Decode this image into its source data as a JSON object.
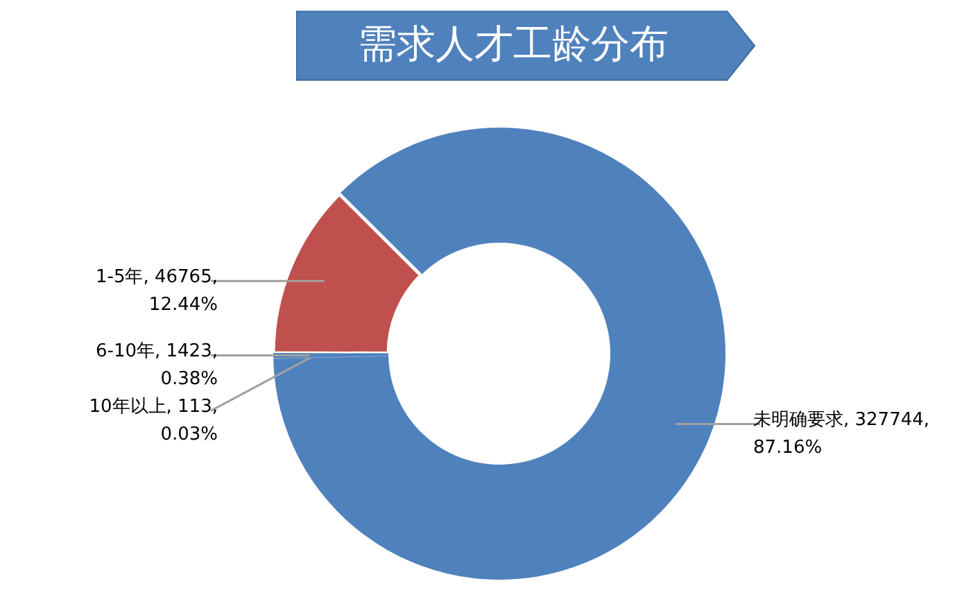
{
  "chart_data": {
    "type": "donut",
    "title": "需求人才工龄分布",
    "categories": [
      "10年以上",
      "6-10年",
      "1-5年",
      "未明确要求"
    ],
    "values": [
      113,
      1423,
      46765,
      327744
    ],
    "value_labels": [
      "113, 0.03%",
      "1423, 0.38%",
      "46765, 12.44%",
      "327744, 87.16%"
    ],
    "colors": [
      "#4f81bd",
      "#4f81bd",
      "#c0504d",
      "#4f81bd"
    ]
  }
}
